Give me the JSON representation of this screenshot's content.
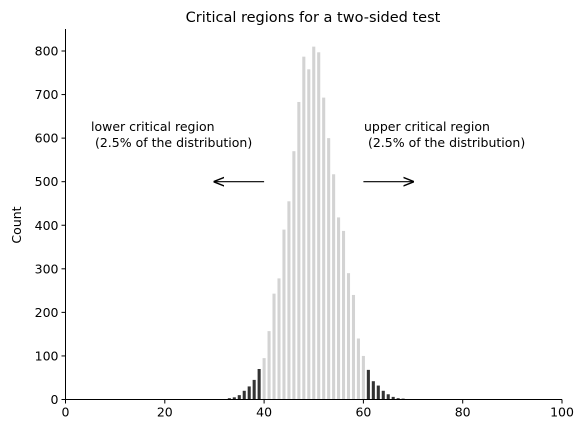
{
  "chart_data": {
    "type": "bar",
    "title": "Critical regions for a two-sided test",
    "xlabel": "",
    "ylabel": "Count",
    "xlim": [
      0,
      100
    ],
    "ylim": [
      0,
      850
    ],
    "xticks": [
      0,
      20,
      40,
      60,
      80,
      100
    ],
    "yticks": [
      0,
      100,
      200,
      300,
      400,
      500,
      600,
      700,
      800
    ],
    "grid": false,
    "colors": {
      "critical": "#333333",
      "noncritical": "#d3d3d3"
    },
    "series": [
      {
        "role": "critical",
        "x": [
          31,
          32,
          33,
          34,
          35,
          36,
          37,
          38,
          39,
          61,
          62,
          63,
          64,
          65,
          66,
          67,
          68,
          69
        ],
        "values": [
          1,
          1,
          3,
          5,
          10,
          20,
          30,
          45,
          70,
          68,
          42,
          32,
          20,
          12,
          6,
          3,
          2,
          1
        ]
      },
      {
        "role": "noncritical",
        "x": [
          40,
          41,
          42,
          43,
          44,
          45,
          46,
          47,
          48,
          49,
          50,
          51,
          52,
          53,
          54,
          55,
          56,
          57,
          58,
          59,
          60
        ],
        "values": [
          95,
          157,
          243,
          278,
          390,
          455,
          570,
          683,
          787,
          758,
          810,
          797,
          693,
          600,
          517,
          418,
          387,
          290,
          240,
          140,
          100
        ]
      }
    ],
    "annotations": [
      {
        "line1": "lower critical region",
        "line2": " (2.5% of the distribution)",
        "arrow_from": 40,
        "arrow_to": 30,
        "y": 500
      },
      {
        "line1": "upper critical region",
        "line2": " (2.5% of the distribution)",
        "arrow_from": 60,
        "arrow_to": 70,
        "y": 500
      }
    ]
  }
}
